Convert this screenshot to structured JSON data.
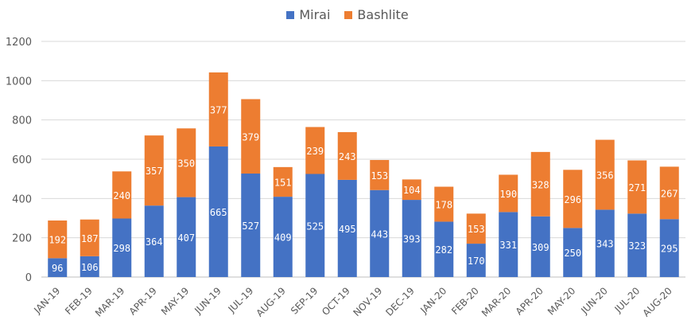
{
  "chart_data": {
    "type": "bar",
    "stacked": true,
    "categories": [
      "JAN-19",
      "FEB-19",
      "MAR-19",
      "APR-19",
      "MAY-19",
      "JUN-19",
      "JUL-19",
      "AUG-19",
      "SEP-19",
      "OCT-19",
      "NOV-19",
      "DEC-19",
      "JAN-20",
      "FEB-20",
      "MAR-20",
      "APR-20",
      "MAY-20",
      "JUN-20",
      "JUL-20",
      "AUG-20"
    ],
    "series": [
      {
        "name": "Mirai",
        "color": "#4472C4",
        "values": [
          96,
          106,
          298,
          364,
          407,
          665,
          527,
          409,
          525,
          495,
          443,
          393,
          282,
          170,
          331,
          309,
          250,
          343,
          323,
          295
        ]
      },
      {
        "name": "Bashlite",
        "color": "#ED7D31",
        "values": [
          192,
          187,
          240,
          357,
          350,
          377,
          379,
          151,
          239,
          243,
          153,
          104,
          178,
          153,
          190,
          328,
          296,
          356,
          271,
          267
        ]
      }
    ],
    "ylim": [
      0,
      1200
    ],
    "yticks": [
      "0",
      "200",
      "400",
      "600",
      "800",
      "1000",
      "1200"
    ],
    "grid": true,
    "legend_position": "top-center"
  }
}
